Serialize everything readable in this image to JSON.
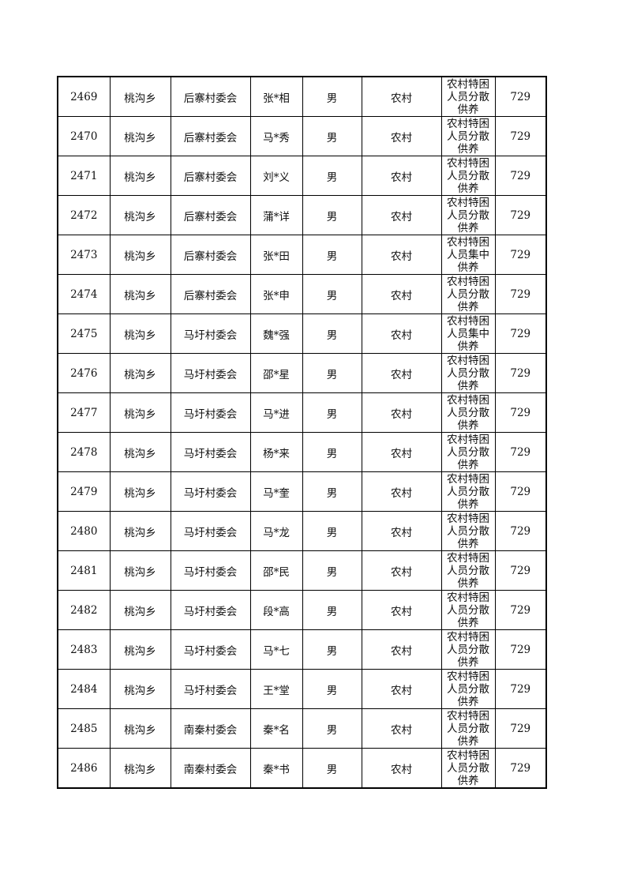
{
  "rows": [
    {
      "no": "2469",
      "township": "桃沟乡",
      "village": "后寨村委会",
      "name": "张*相",
      "gender": "男",
      "area": "农村",
      "type": [
        "农村特困",
        "人员分散",
        "供养"
      ],
      "amount": "729"
    },
    {
      "no": "2470",
      "township": "桃沟乡",
      "village": "后寨村委会",
      "name": "马*秀",
      "gender": "男",
      "area": "农村",
      "type": [
        "农村特困",
        "人员分散",
        "供养"
      ],
      "amount": "729"
    },
    {
      "no": "2471",
      "township": "桃沟乡",
      "village": "后寨村委会",
      "name": "刘*义",
      "gender": "男",
      "area": "农村",
      "type": [
        "农村特困",
        "人员分散",
        "供养"
      ],
      "amount": "729"
    },
    {
      "no": "2472",
      "township": "桃沟乡",
      "village": "后寨村委会",
      "name": "蒲*详",
      "gender": "男",
      "area": "农村",
      "type": [
        "农村特困",
        "人员分散",
        "供养"
      ],
      "amount": "729"
    },
    {
      "no": "2473",
      "township": "桃沟乡",
      "village": "后寨村委会",
      "name": "张*田",
      "gender": "男",
      "area": "农村",
      "type": [
        "农村特困",
        "人员集中",
        "供养"
      ],
      "amount": "729"
    },
    {
      "no": "2474",
      "township": "桃沟乡",
      "village": "后寨村委会",
      "name": "张*申",
      "gender": "男",
      "area": "农村",
      "type": [
        "农村特困",
        "人员分散",
        "供养"
      ],
      "amount": "729"
    },
    {
      "no": "2475",
      "township": "桃沟乡",
      "village": "马圩村委会",
      "name": "魏*强",
      "gender": "男",
      "area": "农村",
      "type": [
        "农村特困",
        "人员集中",
        "供养"
      ],
      "amount": "729"
    },
    {
      "no": "2476",
      "township": "桃沟乡",
      "village": "马圩村委会",
      "name": "邵*星",
      "gender": "男",
      "area": "农村",
      "type": [
        "农村特困",
        "人员分散",
        "供养"
      ],
      "amount": "729"
    },
    {
      "no": "2477",
      "township": "桃沟乡",
      "village": "马圩村委会",
      "name": "马*进",
      "gender": "男",
      "area": "农村",
      "type": [
        "农村特困",
        "人员分散",
        "供养"
      ],
      "amount": "729"
    },
    {
      "no": "2478",
      "township": "桃沟乡",
      "village": "马圩村委会",
      "name": "杨*来",
      "gender": "男",
      "area": "农村",
      "type": [
        "农村特困",
        "人员分散",
        "供养"
      ],
      "amount": "729"
    },
    {
      "no": "2479",
      "township": "桃沟乡",
      "village": "马圩村委会",
      "name": "马*奎",
      "gender": "男",
      "area": "农村",
      "type": [
        "农村特困",
        "人员分散",
        "供养"
      ],
      "amount": "729"
    },
    {
      "no": "2480",
      "township": "桃沟乡",
      "village": "马圩村委会",
      "name": "马*龙",
      "gender": "男",
      "area": "农村",
      "type": [
        "农村特困",
        "人员分散",
        "供养"
      ],
      "amount": "729"
    },
    {
      "no": "2481",
      "township": "桃沟乡",
      "village": "马圩村委会",
      "name": "邵*民",
      "gender": "男",
      "area": "农村",
      "type": [
        "农村特困",
        "人员分散",
        "供养"
      ],
      "amount": "729"
    },
    {
      "no": "2482",
      "township": "桃沟乡",
      "village": "马圩村委会",
      "name": "段*高",
      "gender": "男",
      "area": "农村",
      "type": [
        "农村特困",
        "人员分散",
        "供养"
      ],
      "amount": "729"
    },
    {
      "no": "2483",
      "township": "桃沟乡",
      "village": "马圩村委会",
      "name": "马*七",
      "gender": "男",
      "area": "农村",
      "type": [
        "农村特困",
        "人员分散",
        "供养"
      ],
      "amount": "729"
    },
    {
      "no": "2484",
      "township": "桃沟乡",
      "village": "马圩村委会",
      "name": "王*堂",
      "gender": "男",
      "area": "农村",
      "type": [
        "农村特困",
        "人员分散",
        "供养"
      ],
      "amount": "729"
    },
    {
      "no": "2485",
      "township": "桃沟乡",
      "village": "南秦村委会",
      "name": "秦*名",
      "gender": "男",
      "area": "农村",
      "type": [
        "农村特困",
        "人员分散",
        "供养"
      ],
      "amount": "729"
    },
    {
      "no": "2486",
      "township": "桃沟乡",
      "village": "南秦村委会",
      "name": "秦*书",
      "gender": "男",
      "area": "农村",
      "type": [
        "农村特困",
        "人员分散",
        "供养"
      ],
      "amount": "729"
    }
  ]
}
